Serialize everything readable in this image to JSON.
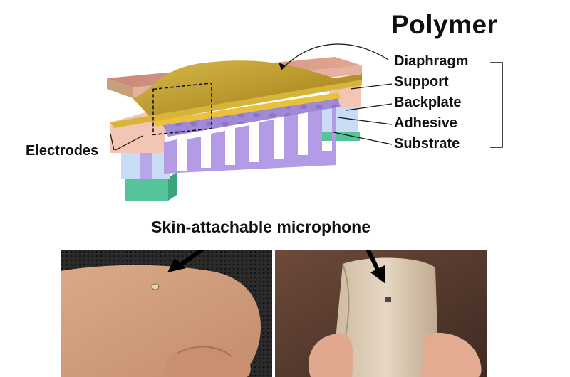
{
  "diagram": {
    "title": "Polymer",
    "layers": [
      {
        "key": "diaphragm",
        "label": "Diaphragm"
      },
      {
        "key": "support",
        "label": "Support"
      },
      {
        "key": "backplate",
        "label": "Backplate"
      },
      {
        "key": "adhesive",
        "label": "Adhesive"
      },
      {
        "key": "substrate",
        "label": "Substrate"
      }
    ],
    "electrodes_label": "Electrodes",
    "colors": {
      "diaphragm": "#c9a42a",
      "support": "#f3c5b4",
      "backplate": "#b39be6",
      "adhesive": "#c8dcf6",
      "substrate": "#55c49a",
      "electrode": "#e8c23c"
    }
  },
  "photos": {
    "caption": "Skin-attachable microphone",
    "items": [
      {
        "key": "hand",
        "subject": "hand-with-microphone",
        "arrow": "black-arrow"
      },
      {
        "key": "film",
        "subject": "curved-film-with-microphone",
        "arrow": "black-arrow"
      }
    ]
  }
}
